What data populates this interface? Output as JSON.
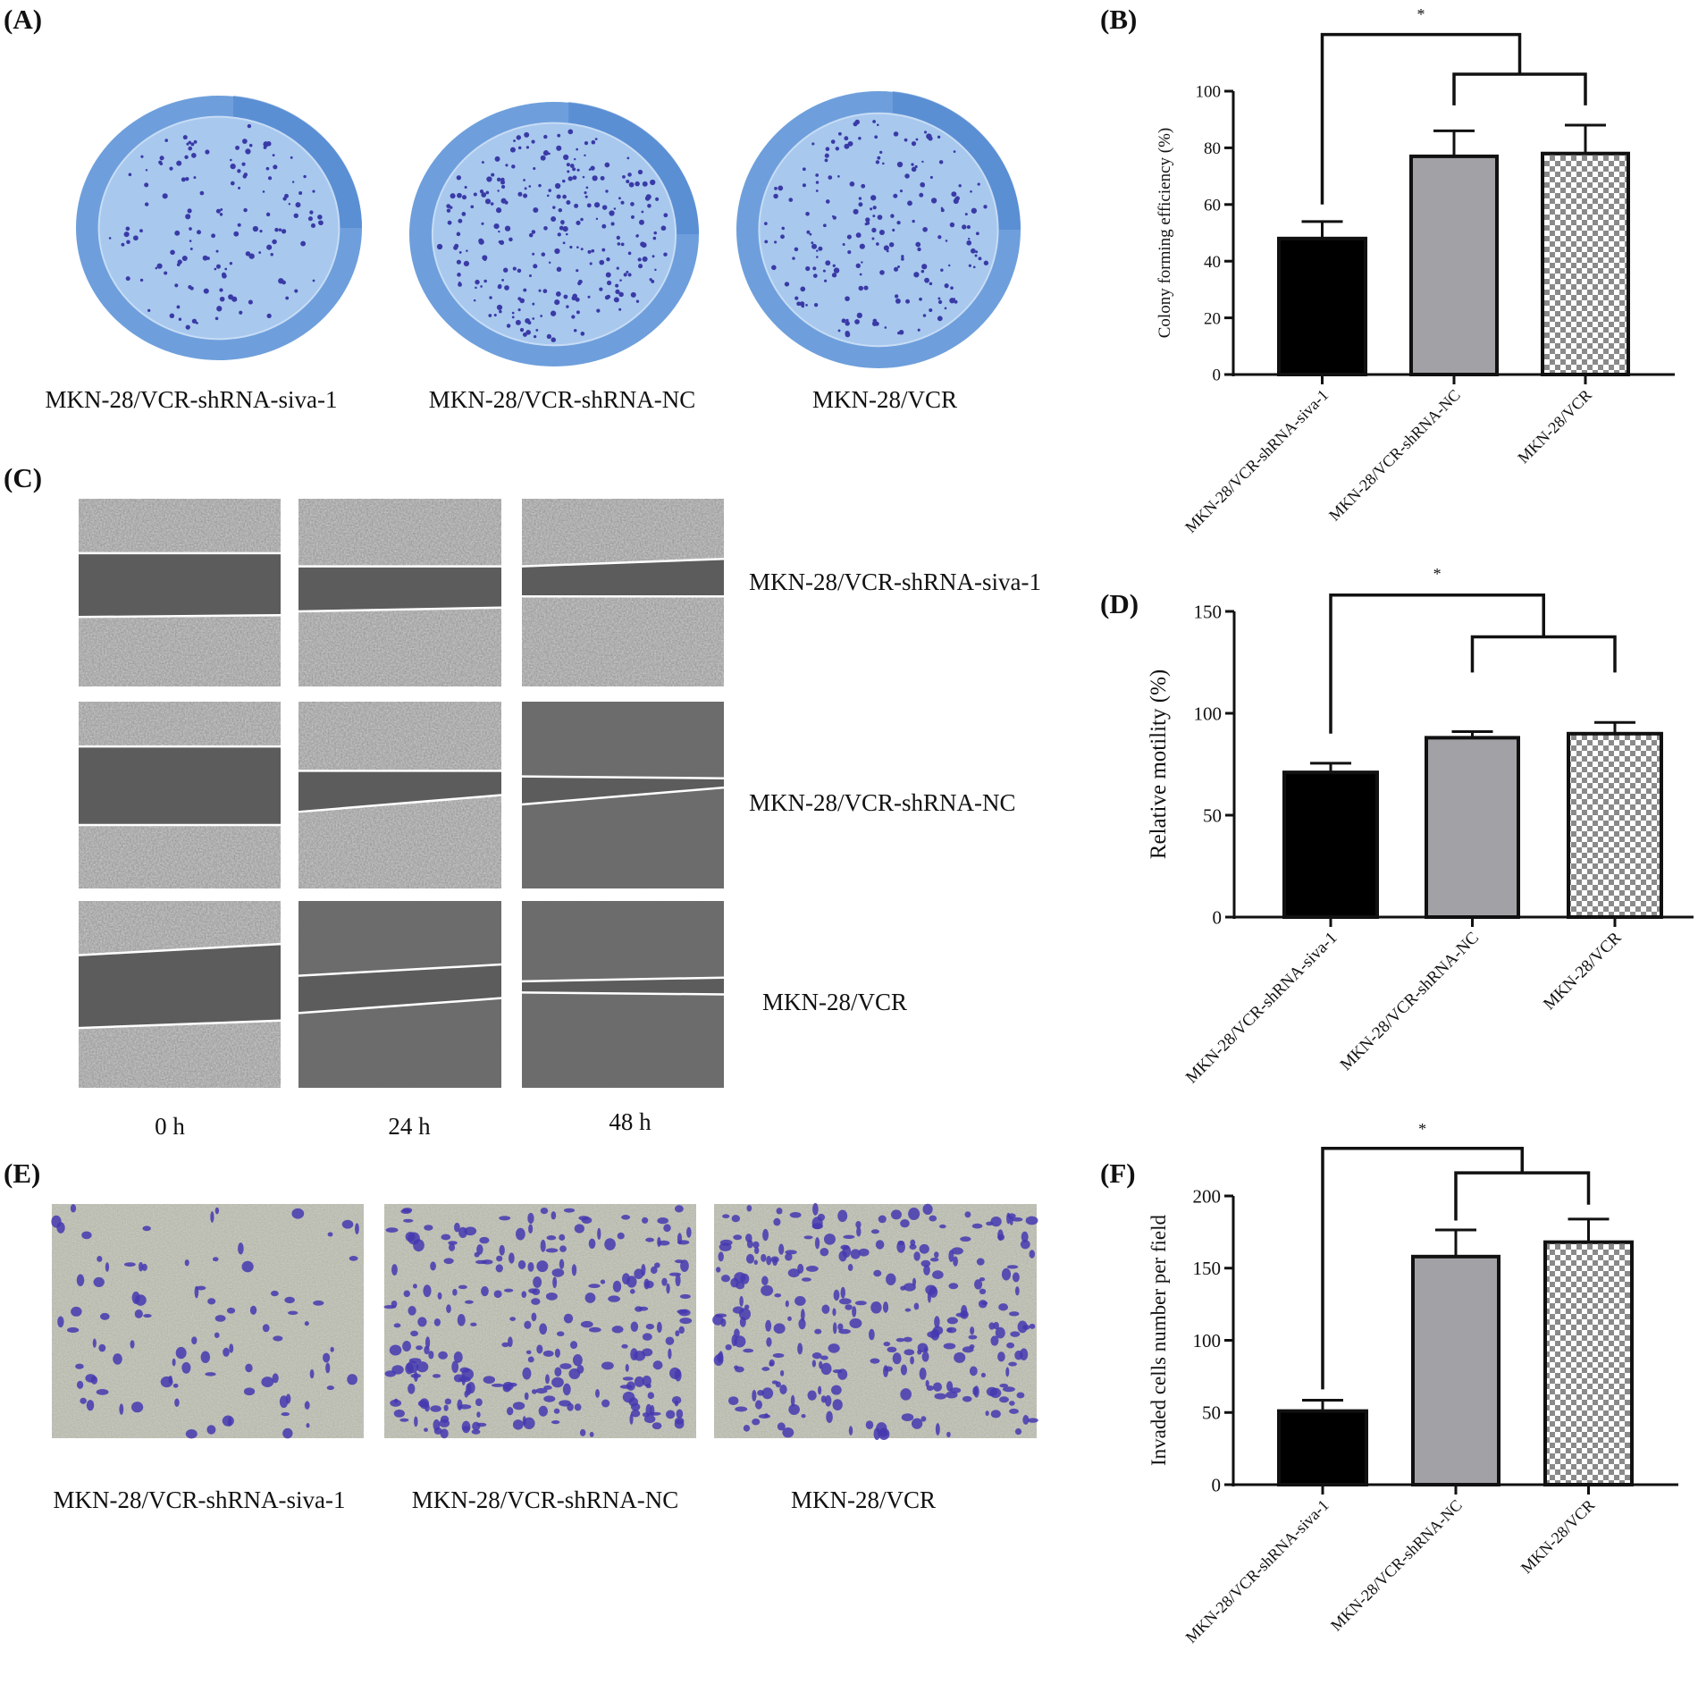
{
  "panels": {
    "A": "(A)",
    "B": "(B)",
    "C": "(C)",
    "D": "(D)",
    "E": "(E)",
    "F": "(F)"
  },
  "panel_a": {
    "labels": [
      "MKN-28/VCR-shRNA-siva-1",
      "MKN-28/VCR-shRNA-NC",
      "MKN-28/VCR"
    ],
    "plate_color": "#6e9fdc",
    "colony_color": "#3a3aa6"
  },
  "panel_c": {
    "row_labels": [
      "MKN-28/VCR-shRNA-siva-1",
      "MKN-28/VCR-shRNA-NC",
      "MKN-28/VCR"
    ],
    "time_labels": [
      "0 h",
      "24 h",
      "48 h"
    ]
  },
  "panel_e": {
    "labels": [
      "MKN-28/VCR-shRNA-siva-1",
      "MKN-28/VCR-shRNA-NC",
      "MKN-28/VCR"
    ],
    "stain_color": "#4538b0"
  },
  "chart_data": [
    {
      "panel": "B",
      "type": "bar",
      "categories": [
        "MKN-28/VCR-shRNA-siva-1",
        "MKN-28/VCR-shRNA-NC",
        "MKN-28/VCR"
      ],
      "values": [
        48,
        77,
        78
      ],
      "error_upper": [
        54,
        86,
        88
      ],
      "ylabel": "Colony forming efficiency (%)",
      "ylim": [
        0,
        100
      ],
      "yticks": [
        0,
        20,
        40,
        60,
        80,
        100
      ],
      "fills": [
        "#000000",
        "#a2a1a6",
        "checker"
      ],
      "significance": {
        "label": "*",
        "outer_level": 120,
        "inner_level": 106,
        "left_leg_end": 60,
        "inner_leg_ends": [
          95,
          95
        ]
      },
      "grid": false
    },
    {
      "panel": "D",
      "type": "bar",
      "categories": [
        "MKN-28/VCR-shRNA-siva-1",
        "MKN-28/VCR-shRNA-NC",
        "MKN-28/VCR"
      ],
      "values": [
        71,
        88,
        90
      ],
      "error_upper": [
        75.5,
        91,
        95.5
      ],
      "ylabel": "Relative motility (%)",
      "ylim": [
        0,
        150
      ],
      "yticks": [
        0,
        50,
        100,
        150
      ],
      "fills": [
        "#000000",
        "#a2a1a6",
        "checker"
      ],
      "significance": {
        "label": "*",
        "outer_level": 158,
        "inner_level": 137.5,
        "left_leg_end": 90,
        "inner_leg_ends": [
          120,
          120
        ]
      },
      "grid": false
    },
    {
      "panel": "F",
      "type": "bar",
      "categories": [
        "MKN-28/VCR-shRNA-siva-1",
        "MKN-28/VCR-shRNA-NC",
        "MKN-28/VCR"
      ],
      "values": [
        51,
        158,
        168
      ],
      "error_upper": [
        58.5,
        176.5,
        184
      ],
      "ylabel": "Invaded cells number per field",
      "ylim": [
        0,
        200
      ],
      "yticks": [
        0,
        50,
        100,
        150,
        200
      ],
      "fills": [
        "#000000",
        "#a2a1a6",
        "checker"
      ],
      "significance": {
        "label": "*",
        "outer_level": 233,
        "inner_level": 216,
        "left_leg_end": 66,
        "inner_leg_ends": [
          183,
          194
        ]
      },
      "grid": false
    }
  ]
}
